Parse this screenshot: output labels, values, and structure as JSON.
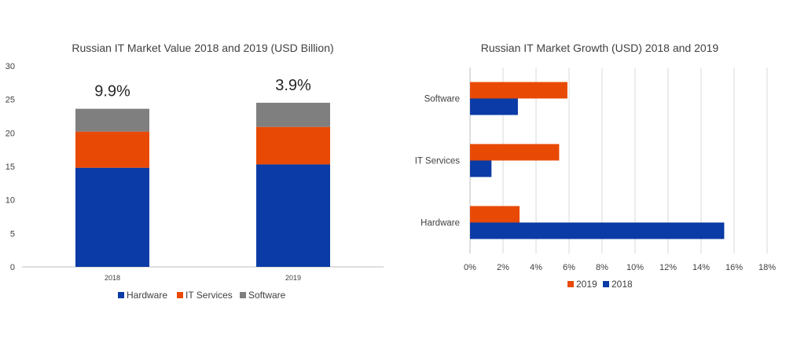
{
  "colors": {
    "hardware": "#0a3ba6",
    "it_services": "#e84a05",
    "software": "#7f7f7f",
    "y2019": "#e84a05",
    "y2018": "#0a3ba6",
    "grid": "#d9d9d9",
    "axis": "#bfbfbf"
  },
  "chart_data": [
    {
      "type": "bar",
      "stacked": true,
      "title": "Russian IT Market Value 2018 and 2019 (USD Billion)",
      "categories": [
        "2018",
        "2019"
      ],
      "series": [
        {
          "name": "Hardware",
          "values": [
            14.8,
            15.3
          ]
        },
        {
          "name": "IT Services",
          "values": [
            5.4,
            5.6
          ]
        },
        {
          "name": "Software",
          "values": [
            3.4,
            3.6
          ]
        }
      ],
      "annotations": [
        "9.9%",
        "3.9%"
      ],
      "ylim": [
        0,
        30
      ],
      "yticks": [
        "0",
        "5",
        "10",
        "15",
        "20",
        "25",
        "30"
      ],
      "grid": false,
      "legend": "bottom"
    },
    {
      "type": "bar",
      "orientation": "horizontal",
      "title": "Russian IT Market Growth (USD) 2018 and 2019",
      "categories": [
        "Software",
        "IT Services",
        "Hardware"
      ],
      "series": [
        {
          "name": "2019",
          "values": [
            5.9,
            5.4,
            3.0
          ]
        },
        {
          "name": "2018",
          "values": [
            2.9,
            1.3,
            15.4
          ]
        }
      ],
      "xlim": [
        0,
        18
      ],
      "xticks": [
        "0%",
        "2%",
        "4%",
        "6%",
        "8%",
        "10%",
        "12%",
        "14%",
        "16%",
        "18%"
      ],
      "grid": true,
      "legend": "bottom"
    }
  ]
}
